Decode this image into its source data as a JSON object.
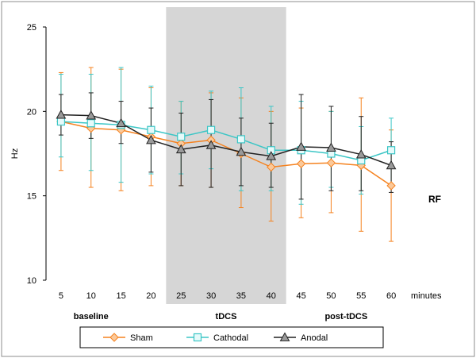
{
  "chart_data": {
    "type": "line",
    "x": [
      5,
      10,
      15,
      20,
      25,
      30,
      35,
      40,
      45,
      50,
      55,
      60
    ],
    "xlabel": "minutes",
    "ylabel": "Hz",
    "ylim": [
      10,
      25
    ],
    "yticks": [
      10,
      15,
      20,
      25
    ],
    "grid": false,
    "legend_position": "bottom",
    "annotations": {
      "phases": [
        "baseline",
        "tDCS",
        "post-tDCS"
      ],
      "region_label": "RF",
      "shaded_x_range": [
        25,
        40
      ]
    },
    "series": [
      {
        "name": "Sham",
        "color": "#F5821F",
        "marker": "diamond",
        "values": [
          19.4,
          19.0,
          18.9,
          18.5,
          18.1,
          18.3,
          17.5,
          16.7,
          16.9,
          16.95,
          16.8,
          15.6
        ],
        "error_upper": [
          22.3,
          22.6,
          22.5,
          21.4,
          20.6,
          21.1,
          20.8,
          20.0,
          20.2,
          20.0,
          20.8,
          18.9
        ],
        "error_lower": [
          16.5,
          15.5,
          15.3,
          15.6,
          15.6,
          15.5,
          14.3,
          13.5,
          13.7,
          14.0,
          12.9,
          12.3
        ]
      },
      {
        "name": "Cathodal",
        "color": "#3CC6C6",
        "marker": "square",
        "values": [
          19.4,
          19.3,
          19.2,
          18.9,
          18.5,
          18.9,
          18.35,
          17.7,
          17.7,
          17.5,
          17.1,
          17.7
        ],
        "error_upper": [
          22.2,
          22.2,
          22.6,
          21.5,
          20.6,
          21.2,
          21.4,
          20.3,
          20.6,
          20.0,
          19.1,
          19.6
        ],
        "error_lower": [
          17.3,
          16.5,
          15.8,
          16.3,
          16.3,
          16.6,
          15.3,
          15.3,
          14.5,
          15.5,
          15.1,
          15.7
        ]
      },
      {
        "name": "Anodal",
        "color": "#222222",
        "marker": "triangle",
        "values": [
          19.8,
          19.75,
          19.3,
          18.3,
          17.75,
          18.0,
          17.6,
          17.35,
          17.9,
          17.85,
          17.45,
          16.8
        ],
        "error_upper": [
          21.0,
          21.1,
          20.6,
          20.2,
          19.9,
          20.7,
          19.6,
          19.3,
          21.0,
          20.3,
          19.7,
          18.2
        ],
        "error_lower": [
          18.6,
          18.4,
          18.1,
          16.4,
          15.6,
          15.5,
          15.6,
          15.5,
          14.8,
          15.3,
          15.3,
          15.2
        ]
      }
    ]
  }
}
